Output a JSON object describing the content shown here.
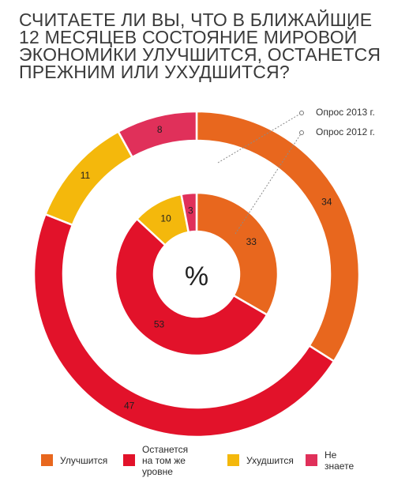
{
  "title_lines": [
    "СЧИТАЕТЕ ЛИ ВЫ, ЧТО В БЛИЖАЙШИЕ",
    "12 МЕСЯЦЕВ СОСТОЯНИЕ МИРОВОЙ",
    "ЭКОНОМИКИ УЛУЧШИТСЯ, ОСТАНЕТСЯ",
    "ПРЕЖНИМ ИЛИ УХУДШИТСЯ?"
  ],
  "colors": {
    "improve": "#e8671e",
    "same": "#e2122a",
    "worse": "#f4b80c",
    "dontknow": "#e0305a"
  },
  "chart_data": {
    "type": "pie",
    "subtype": "donut",
    "title": "СЧИТАЕТЕ ЛИ ВЫ, ЧТО В БЛИЖАЙШИЕ 12 МЕСЯЦЕВ СОСТОЯНИЕ МИРОВОЙ ЭКОНОМИКИ УЛУЧШИТСЯ, ОСТАНЕТСЯ ПРЕЖНИМ ИЛИ УХУДШИТСЯ?",
    "center_label": "%",
    "categories": [
      "Улучшится",
      "Останется\nна том же уровне",
      "Ухудшится",
      "Не знаете"
    ],
    "series": [
      {
        "name": "Опрос 2013 г.",
        "ring": "outer",
        "values": [
          34,
          47,
          11,
          8
        ]
      },
      {
        "name": "Опрос 2012 г.",
        "ring": "inner",
        "values": [
          33,
          53,
          10,
          3
        ]
      }
    ],
    "legend_position": "bottom"
  }
}
